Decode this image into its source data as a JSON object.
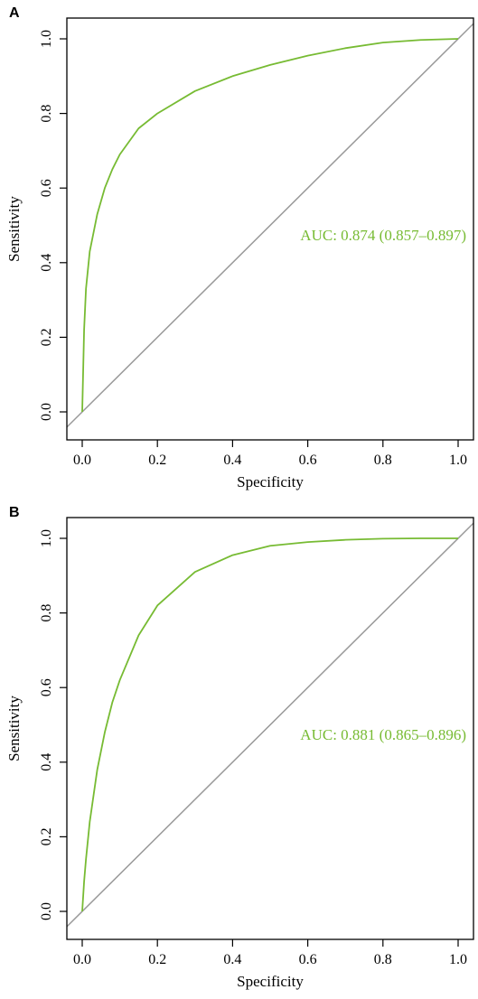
{
  "colors": {
    "curve": "#77bb33",
    "diagonal": "#999999",
    "frame": "#000000"
  },
  "chart_data": [
    {
      "type": "line",
      "panel_label": "A",
      "xlabel": "Specificity",
      "ylabel": "Sensitivity",
      "xlim": [
        0,
        1
      ],
      "ylim": [
        0,
        1
      ],
      "xticks": [
        "0.0",
        "0.2",
        "0.4",
        "0.6",
        "0.8",
        "1.0"
      ],
      "yticks": [
        "0.0",
        "0.2",
        "0.4",
        "0.6",
        "0.8",
        "1.0"
      ],
      "annotation": "AUC: 0.874 (0.857–0.897)",
      "series": [
        {
          "x": [
            0,
            0.005,
            0.01,
            0.02,
            0.04,
            0.06,
            0.08,
            0.1,
            0.15,
            0.2,
            0.3,
            0.4,
            0.5,
            0.6,
            0.7,
            0.8,
            0.9,
            1.0
          ],
          "y": [
            0,
            0.22,
            0.33,
            0.43,
            0.53,
            0.6,
            0.65,
            0.69,
            0.76,
            0.8,
            0.86,
            0.9,
            0.93,
            0.955,
            0.975,
            0.99,
            0.997,
            1.0
          ]
        },
        {
          "x": [
            0,
            1
          ],
          "y": [
            0,
            1
          ]
        }
      ]
    },
    {
      "type": "line",
      "panel_label": "B",
      "xlabel": "Specificity",
      "ylabel": "Sensitivity",
      "xlim": [
        0,
        1
      ],
      "ylim": [
        0,
        1
      ],
      "xticks": [
        "0.0",
        "0.2",
        "0.4",
        "0.6",
        "0.8",
        "1.0"
      ],
      "yticks": [
        "0.0",
        "0.2",
        "0.4",
        "0.6",
        "0.8",
        "1.0"
      ],
      "annotation": "AUC: 0.881 (0.865–0.896)",
      "series": [
        {
          "x": [
            0,
            0.005,
            0.01,
            0.02,
            0.04,
            0.06,
            0.08,
            0.1,
            0.15,
            0.2,
            0.3,
            0.4,
            0.5,
            0.6,
            0.7,
            0.8,
            0.9,
            1.0
          ],
          "y": [
            0,
            0.08,
            0.14,
            0.24,
            0.38,
            0.48,
            0.56,
            0.62,
            0.74,
            0.82,
            0.91,
            0.955,
            0.98,
            0.99,
            0.996,
            0.999,
            1.0,
            1.0
          ]
        },
        {
          "x": [
            0,
            1
          ],
          "y": [
            0,
            1
          ]
        }
      ]
    }
  ]
}
